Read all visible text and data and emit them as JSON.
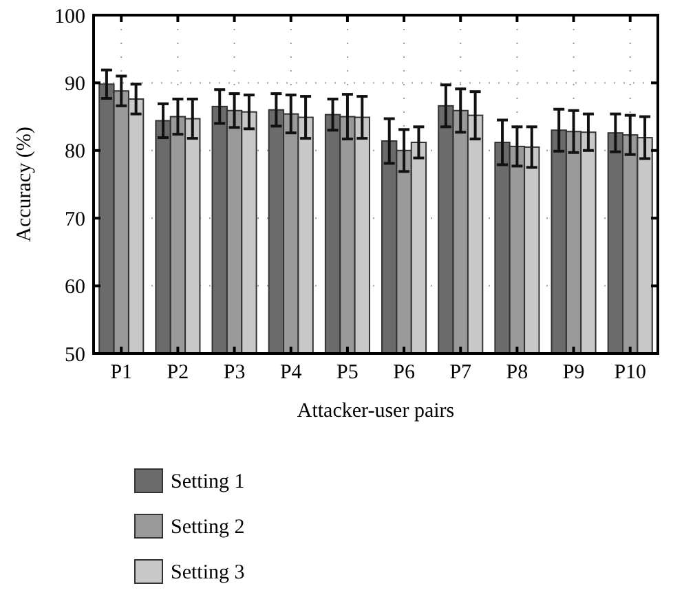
{
  "chart_data": {
    "type": "bar",
    "xlabel": "Attacker-user pairs",
    "ylabel": "Accuracy (%)",
    "categories": [
      "P1",
      "P2",
      "P3",
      "P4",
      "P5",
      "P6",
      "P7",
      "P8",
      "P9",
      "P10"
    ],
    "series": [
      {
        "name": "Setting 1",
        "color": "#6b6b6b",
        "values": [
          89.8,
          84.4,
          86.5,
          86.0,
          85.3,
          81.4,
          86.6,
          81.2,
          83.0,
          82.6
        ],
        "errors": [
          2.1,
          2.5,
          2.5,
          2.4,
          2.3,
          3.3,
          3.1,
          3.3,
          3.1,
          2.8
        ]
      },
      {
        "name": "Setting 2",
        "color": "#9a9a9a",
        "values": [
          88.8,
          85.0,
          85.9,
          85.4,
          85.0,
          80.0,
          85.9,
          80.6,
          82.8,
          82.3
        ],
        "errors": [
          2.2,
          2.6,
          2.5,
          2.8,
          3.3,
          3.1,
          3.2,
          2.9,
          3.1,
          2.9
        ]
      },
      {
        "name": "Setting 3",
        "color": "#c8c8c8",
        "values": [
          87.6,
          84.7,
          85.7,
          84.9,
          84.9,
          81.2,
          85.2,
          80.5,
          82.7,
          81.9
        ],
        "errors": [
          2.2,
          2.9,
          2.5,
          3.1,
          3.1,
          2.3,
          3.5,
          3.0,
          2.7,
          3.1
        ]
      }
    ],
    "ylim": [
      50,
      100
    ],
    "yticks": [
      50,
      60,
      70,
      80,
      90,
      100
    ],
    "grid": true,
    "legend": "bottom"
  }
}
